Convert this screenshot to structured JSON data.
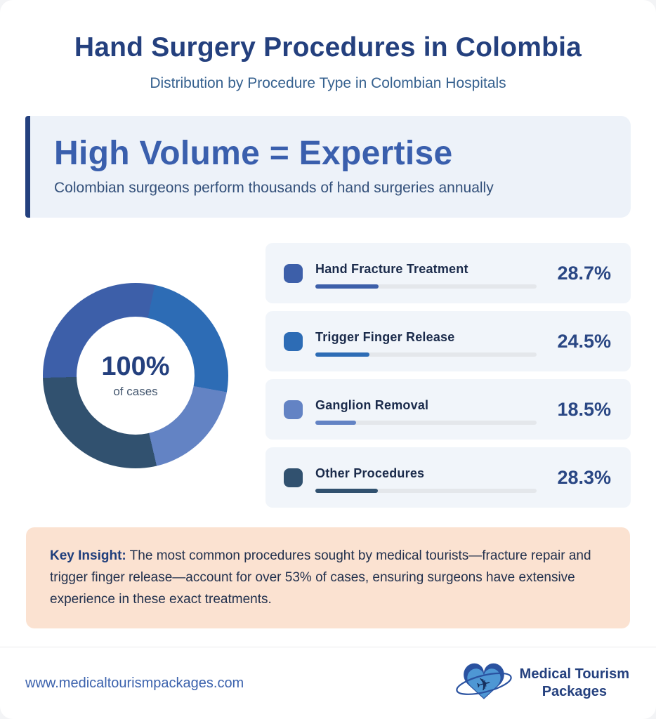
{
  "page": {
    "title": "Hand Surgery Procedures in Colombia",
    "subtitle": "Distribution by Procedure Type in Colombian Hospitals"
  },
  "callout": {
    "heading": "High Volume = Expertise",
    "subheading": "Colombian surgeons perform thousands of hand surgeries annually"
  },
  "chart_data": {
    "type": "pie",
    "donut": true,
    "title": "Distribution by Procedure Type in Colombian Hospitals",
    "categories": [
      "Hand Fracture Treatment",
      "Trigger Finger Release",
      "Ganglion Removal",
      "Other Procedures"
    ],
    "values": [
      28.7,
      24.5,
      18.5,
      28.3
    ],
    "value_labels": [
      "28.7%",
      "24.5%",
      "18.5%",
      "28.3%"
    ],
    "colors": [
      "#3d5fa9",
      "#2d6cb5",
      "#6383c4",
      "#31516f"
    ],
    "start_angle_deg": 268.7,
    "center_text": "100%",
    "center_subtext": "of cases",
    "legend_position": "right"
  },
  "insight": {
    "label": "Key Insight:",
    "text": " The most common procedures sought by medical tourists—fracture repair and trigger finger release—account for over 53% of cases, ensuring surgeons have extensive experience in these exact treatments."
  },
  "footer": {
    "website": "www.medicaltourismpackages.com",
    "brand_line1": "Medical Tourism",
    "brand_line2": "Packages"
  },
  "theme": {
    "title_color": "#24407e",
    "accent_blue": "#3a5fad",
    "insight_bg": "#fbe2d1",
    "card_bg": "#f1f5fa"
  }
}
